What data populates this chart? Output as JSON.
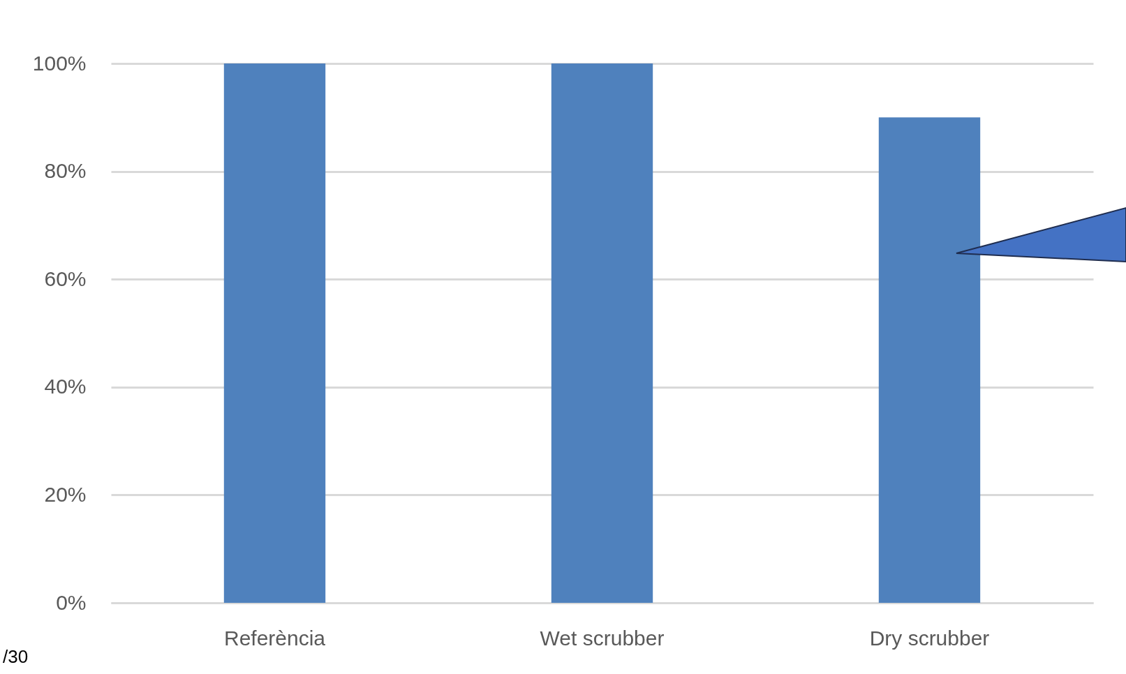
{
  "chart_data": {
    "type": "bar",
    "categories": [
      "Referència",
      "Wet scrubber",
      "Dry scrubber"
    ],
    "values": [
      100,
      100,
      90
    ],
    "color": "#4f81bd",
    "ylim": [
      0,
      100
    ],
    "yticks": [
      {
        "value": 0,
        "label": "0%"
      },
      {
        "value": 20,
        "label": "20%"
      },
      {
        "value": 40,
        "label": "40%"
      },
      {
        "value": 60,
        "label": "60%"
      },
      {
        "value": 80,
        "label": "80%"
      },
      {
        "value": 100,
        "label": "100%"
      }
    ],
    "grid": "y",
    "annotations": [
      "/30"
    ]
  }
}
